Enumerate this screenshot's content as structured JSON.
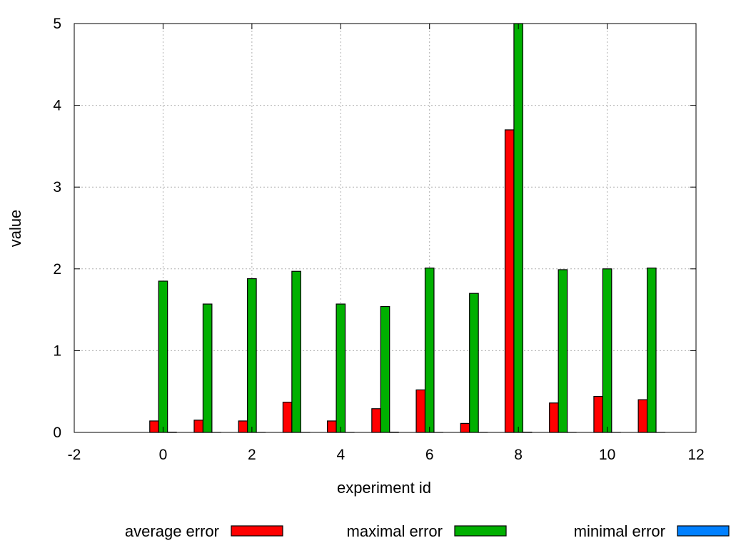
{
  "chart_data": {
    "type": "bar",
    "title": "",
    "xlabel": "experiment id",
    "ylabel": "value",
    "xlim": [
      -2,
      12
    ],
    "ylim": [
      0,
      5
    ],
    "xticks": [
      "-2",
      "0",
      "2",
      "4",
      "6",
      "8",
      "10",
      "12"
    ],
    "yticks": [
      "0",
      "1",
      "2",
      "3",
      "4",
      "5"
    ],
    "grid": true,
    "legend_position": "bottom",
    "x": [
      0,
      1,
      2,
      3,
      4,
      5,
      6,
      7,
      8,
      9,
      10,
      11
    ],
    "series": [
      {
        "name": "average error",
        "color": "#ff0000",
        "values": [
          0.14,
          0.15,
          0.14,
          0.37,
          0.14,
          0.29,
          0.52,
          0.11,
          3.7,
          0.36,
          0.44,
          0.4
        ]
      },
      {
        "name": "maximal error",
        "color": "#00b000",
        "values": [
          1.85,
          1.57,
          1.88,
          1.97,
          1.57,
          1.54,
          2.01,
          1.7,
          5.0,
          1.99,
          2.0,
          2.01
        ]
      },
      {
        "name": "minimal error",
        "color": "#0080ff",
        "values": [
          0.003,
          0.0,
          0.0,
          0.0,
          0.0,
          0.003,
          0.0,
          0.0,
          0.003,
          0.0,
          0.0,
          0.0
        ]
      }
    ]
  }
}
